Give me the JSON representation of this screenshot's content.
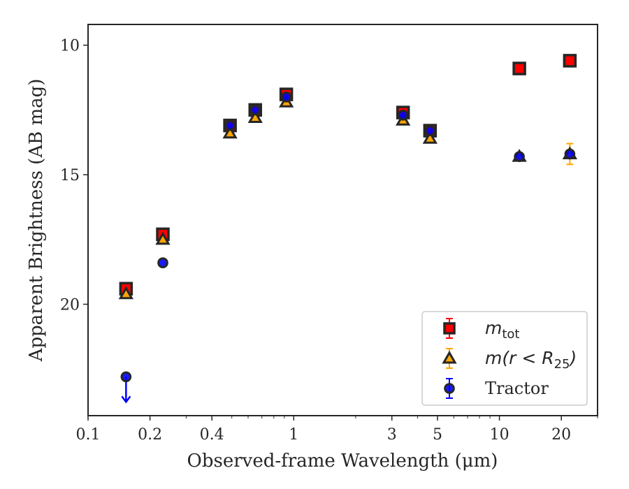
{
  "chart_data": {
    "type": "scatter",
    "xlabel": "Observed-frame Wavelength (μm)",
    "ylabel": "Apparent Brightness (AB mag)",
    "x_scale": "log",
    "xlim": [
      0.1,
      30
    ],
    "ylim": [
      24.3,
      9.2
    ],
    "y_inverted": true,
    "x_ticks": [
      0.1,
      0.2,
      0.4,
      1,
      3,
      5,
      10,
      20
    ],
    "x_tick_labels": [
      "0.1",
      "0.2",
      "0.4",
      "1",
      "3",
      "5",
      "10",
      "20"
    ],
    "y_ticks": [
      10,
      15,
      20
    ],
    "y_tick_labels": [
      "10",
      "15",
      "20"
    ],
    "legend_position": "lower right",
    "series": [
      {
        "name": "m_tot",
        "marker": "square",
        "color": "#ff0000",
        "edge": "#262626",
        "points": [
          {
            "x": 0.153,
            "y": 19.4
          },
          {
            "x": 0.231,
            "y": 17.3
          },
          {
            "x": 0.49,
            "y": 13.1
          },
          {
            "x": 0.65,
            "y": 12.5
          },
          {
            "x": 0.92,
            "y": 11.9
          },
          {
            "x": 3.4,
            "y": 12.6
          },
          {
            "x": 4.6,
            "y": 13.3
          },
          {
            "x": 12.5,
            "y": 10.9
          },
          {
            "x": 22.0,
            "y": 10.6
          }
        ]
      },
      {
        "name": "m(r < R_25)",
        "marker": "triangle",
        "color": "#ffa500",
        "edge": "#262626",
        "points": [
          {
            "x": 0.153,
            "y": 19.6
          },
          {
            "x": 0.231,
            "y": 17.5
          },
          {
            "x": 0.49,
            "y": 13.4
          },
          {
            "x": 0.65,
            "y": 12.8
          },
          {
            "x": 0.92,
            "y": 12.2
          },
          {
            "x": 3.4,
            "y": 12.9
          },
          {
            "x": 4.6,
            "y": 13.6
          },
          {
            "x": 12.5,
            "y": 14.3
          },
          {
            "x": 22.0,
            "y": 14.2,
            "yerr": 0.4
          }
        ]
      },
      {
        "name": "Tractor",
        "marker": "circle",
        "color": "#0000ff",
        "edge": "#262626",
        "points": [
          {
            "x": 0.153,
            "y": 22.8,
            "upper_limit": true
          },
          {
            "x": 0.231,
            "y": 18.4
          },
          {
            "x": 0.49,
            "y": 13.1
          },
          {
            "x": 0.65,
            "y": 12.5
          },
          {
            "x": 0.92,
            "y": 12.0
          },
          {
            "x": 3.4,
            "y": 12.7
          },
          {
            "x": 4.6,
            "y": 13.3
          },
          {
            "x": 12.5,
            "y": 14.3
          },
          {
            "x": 22.0,
            "y": 14.2
          }
        ]
      }
    ],
    "legend": [
      {
        "math": "m",
        "sub": "tot",
        "marker": "square"
      },
      {
        "math": "m(r < R",
        "sub": "25",
        "close": ")",
        "marker": "triangle"
      },
      {
        "label": "Tractor",
        "marker": "circle"
      }
    ]
  }
}
